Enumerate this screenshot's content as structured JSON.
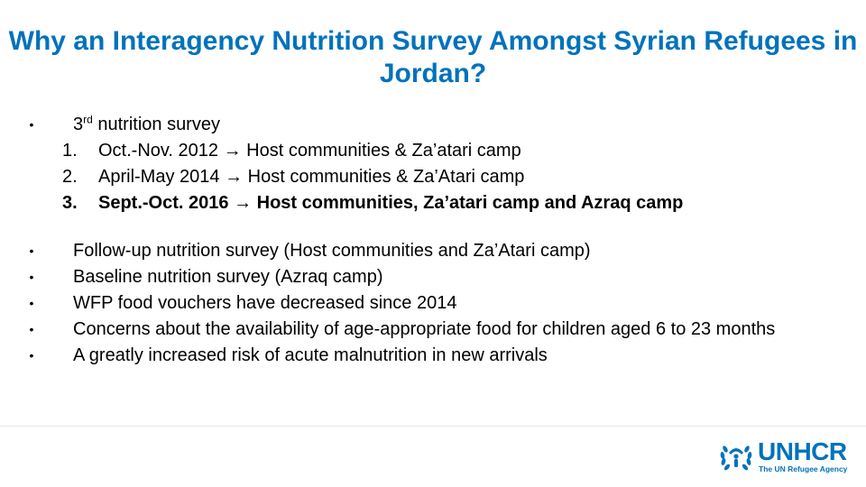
{
  "title": "Why an Interagency Nutrition Survey Amongst Syrian Refugees in Jordan?",
  "intro": {
    "bullet": "•",
    "prefix": "3",
    "superscript": "rd",
    "text": " nutrition survey"
  },
  "surveys": [
    {
      "num": "1.",
      "period": "Oct.-Nov. 2012",
      "arrow": "→",
      "target": " Host communities & Za’atari camp",
      "bold": false
    },
    {
      "num": "2.",
      "period": "April-May 2014",
      "arrow": "→",
      "target": " Host communities & Za’Atari camp",
      "bold": false
    },
    {
      "num": "3.",
      "period": "Sept.-Oct. 2016",
      "arrow": "→",
      "target": " Host communities, Za’atari camp and Azraq camp",
      "bold": true
    }
  ],
  "bullets": [
    "Follow-up nutrition survey (Host communities and Za’Atari camp)",
    "Baseline nutrition survey (Azraq camp)",
    "WFP food vouchers have decreased since 2014",
    "Concerns about the availability of age-appropriate food for children aged 6 to 23 months",
    "A greatly increased risk of acute malnutrition in new arrivals"
  ],
  "bullet_char": "•",
  "logo": {
    "wordmark": "UNHCR",
    "tagline": "The UN Refugee Agency",
    "color": "#0072BC"
  },
  "colors": {
    "title": "#0072BC"
  }
}
